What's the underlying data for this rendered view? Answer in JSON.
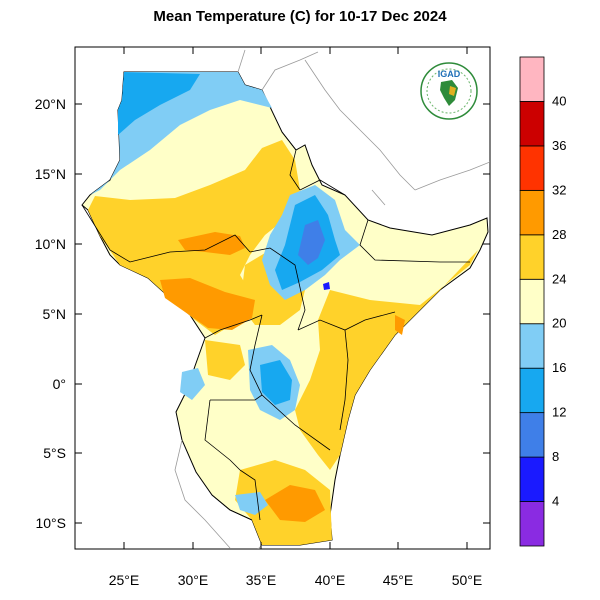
{
  "title": "Mean Temperature (C) for 10-17 Dec 2024",
  "logo": {
    "text": "IGAD",
    "icon": "igad-logo-icon"
  },
  "map_axes": {
    "lon_ticks": [
      "25°E",
      "30°E",
      "35°E",
      "40°E",
      "45°E",
      "50°E"
    ],
    "lat_ticks": [
      "20°N",
      "15°N",
      "10°N",
      "5°N",
      "0°",
      "5°S",
      "10°S"
    ]
  },
  "colorbar": {
    "labels": [
      "4",
      "8",
      "12",
      "16",
      "20",
      "24",
      "28",
      "32",
      "36",
      "40"
    ],
    "colors": [
      "#8a2be2",
      "#1a1aff",
      "#3f7fe8",
      "#17a8f0",
      "#80cdf5",
      "#ffffc8",
      "#ffd22a",
      "#ff9a00",
      "#ff3300",
      "#cc0000",
      "#ffb6c1"
    ]
  }
}
